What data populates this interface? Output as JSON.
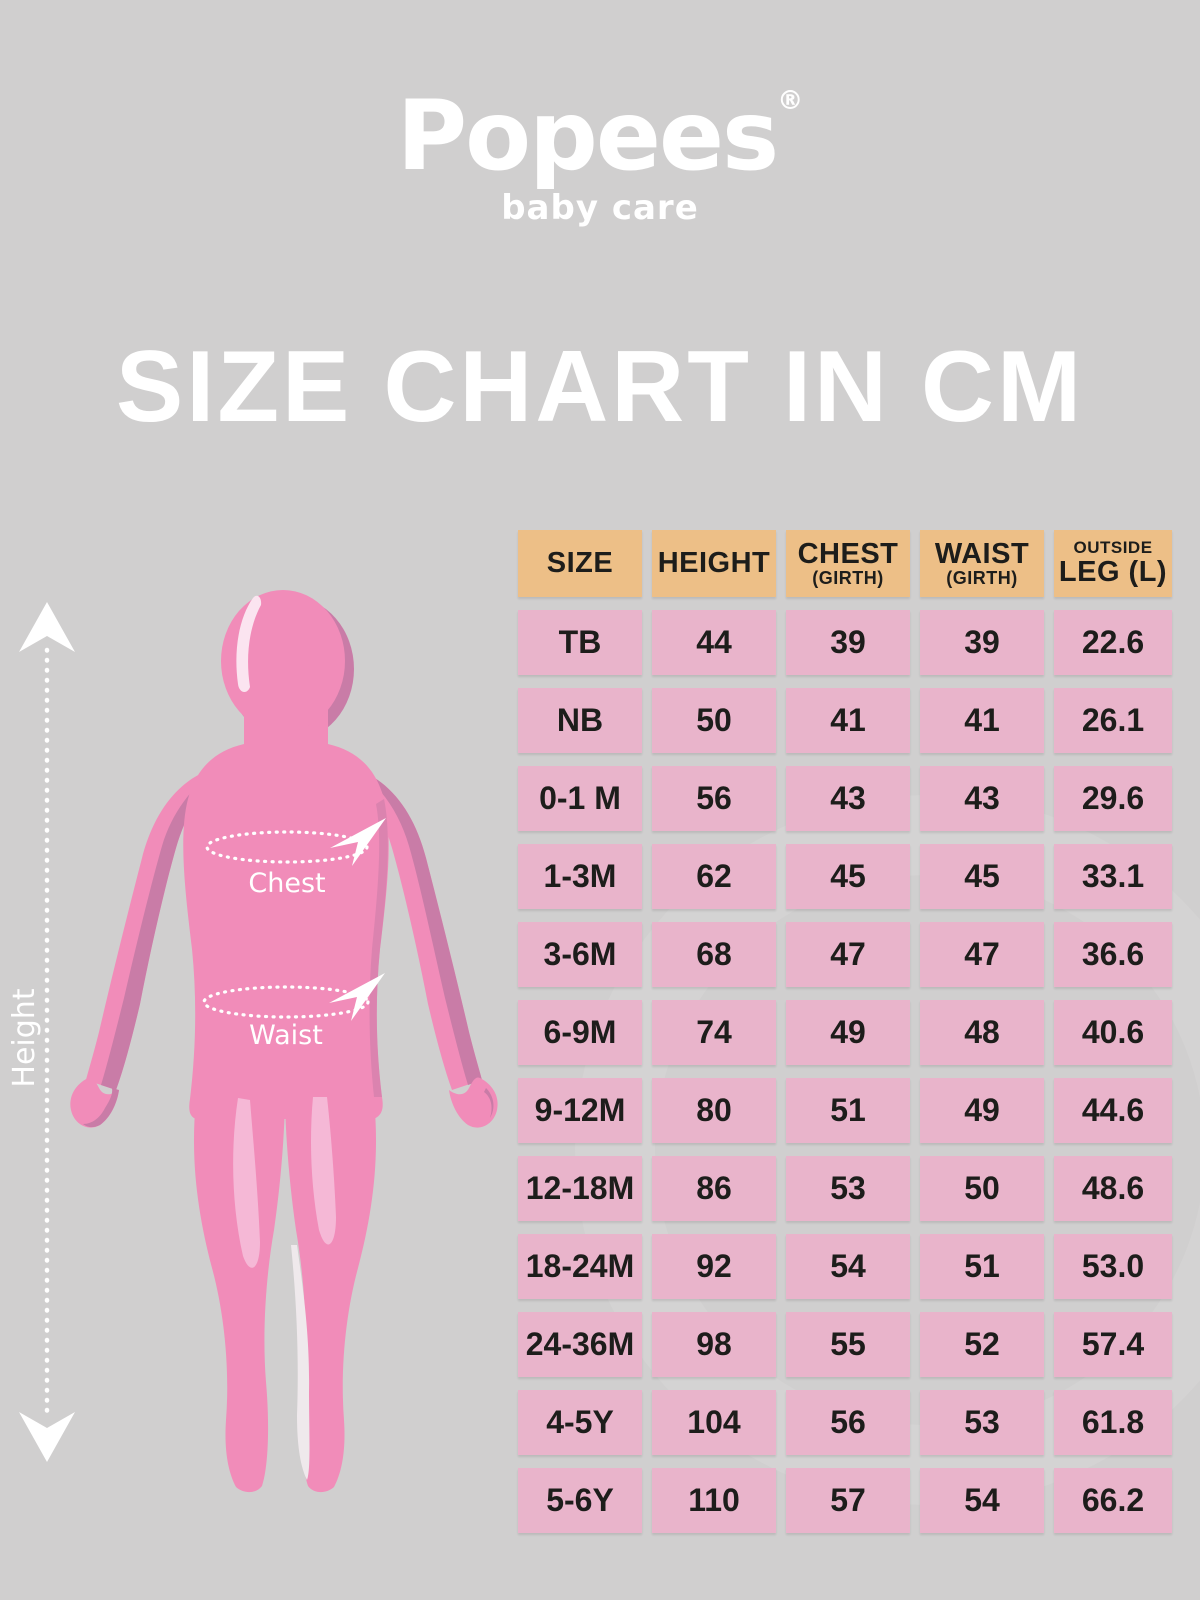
{
  "logo": {
    "brand": "Popees",
    "registered": "®",
    "tagline": "baby care"
  },
  "title": "SIZE CHART IN CM",
  "figure_labels": {
    "height": "Height",
    "chest": "Chest",
    "waist": "Waist"
  },
  "table_header": {
    "col1": "SIZE",
    "col2": "HEIGHT",
    "col3_main": "CHEST",
    "col3_sub": "(GIRTH)",
    "col4_main": "WAIST",
    "col4_sub": "(GIRTH)",
    "col5_top": "OUTSIDE",
    "col5_main": "LEG (L)"
  },
  "chart_data": {
    "type": "table",
    "title": "SIZE CHART IN CM",
    "unit": "cm",
    "columns": [
      "SIZE",
      "HEIGHT",
      "CHEST (GIRTH)",
      "WAIST (GIRTH)",
      "OUTSIDE LEG (L)"
    ],
    "rows": [
      [
        "TB",
        "44",
        "39",
        "39",
        "22.6"
      ],
      [
        "NB",
        "50",
        "41",
        "41",
        "26.1"
      ],
      [
        "0-1 M",
        "56",
        "43",
        "43",
        "29.6"
      ],
      [
        "1-3M",
        "62",
        "45",
        "45",
        "33.1"
      ],
      [
        "3-6M",
        "68",
        "47",
        "47",
        "36.6"
      ],
      [
        "6-9M",
        "74",
        "49",
        "48",
        "40.6"
      ],
      [
        "9-12M",
        "80",
        "51",
        "49",
        "44.6"
      ],
      [
        "12-18M",
        "86",
        "53",
        "50",
        "48.6"
      ],
      [
        "18-24M",
        "92",
        "54",
        "51",
        "53.0"
      ],
      [
        "24-36M",
        "98",
        "55",
        "52",
        "57.4"
      ],
      [
        "4-5Y",
        "104",
        "56",
        "53",
        "61.8"
      ],
      [
        "5-6Y",
        "110",
        "57",
        "54",
        "66.2"
      ]
    ]
  },
  "colors": {
    "background": "#d0cfcf",
    "header_cell": "#edbf87",
    "data_cell": "#e9b4cb",
    "cell_text": "#1d1d1b",
    "white": "#ffffff",
    "figure_main_pink": "#f18cb9",
    "figure_shadow_pink": "#c97ca7",
    "figure_highlight_pink": "#f5b8d6",
    "figure_bright_highlight": "#fbe4f0"
  }
}
